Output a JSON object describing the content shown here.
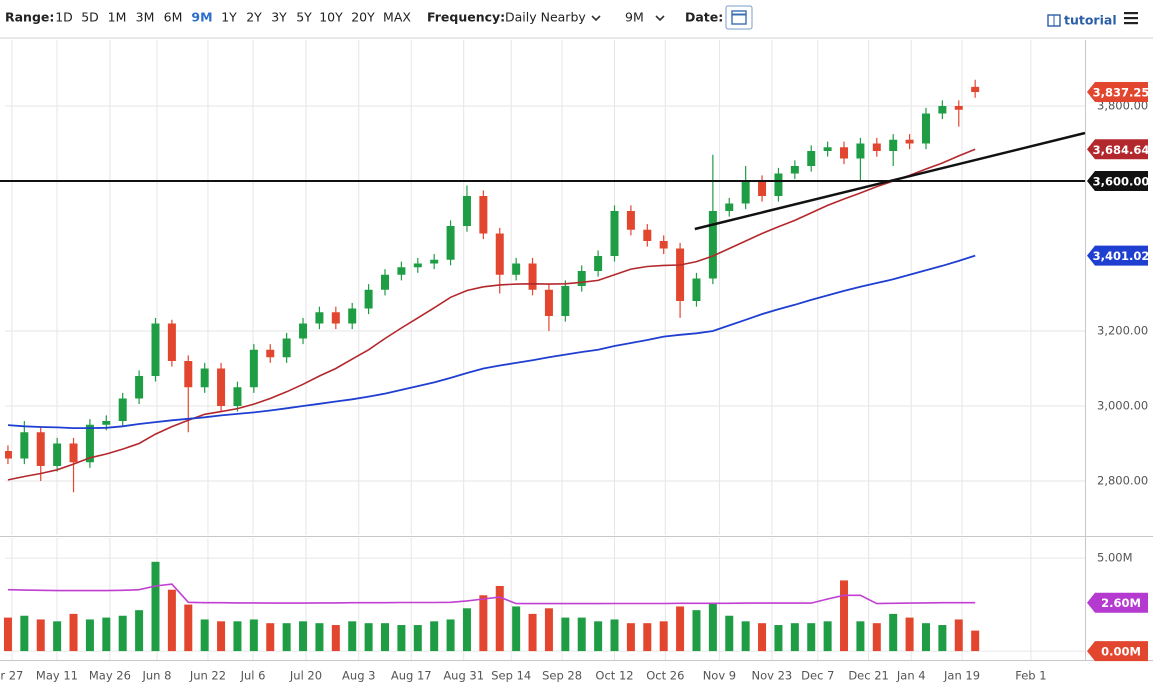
{
  "toolbar": {
    "range_label": "Range:",
    "ranges": [
      "1D",
      "5D",
      "1M",
      "3M",
      "6M",
      "9M",
      "1Y",
      "2Y",
      "3Y",
      "5Y",
      "10Y",
      "20Y",
      "MAX"
    ],
    "active_range": 5,
    "frequency_label": "Frequency:",
    "frequency": "Daily Nearby",
    "period": "9M",
    "date_label": "Date:",
    "tutorial": "tutorial"
  },
  "chart_data": {
    "type": "candlestick",
    "up_color": "#1f9d45",
    "down_color": "#e2462f",
    "xlim": [
      -0.18,
      65.7
    ],
    "ylim": [
      2656,
      3976
    ],
    "xticks": [
      {
        "value": 0.24,
        "label": "r 27"
      },
      {
        "value": 2.99,
        "label": "May 11"
      },
      {
        "value": 6.22,
        "label": "May 26"
      },
      {
        "value": 9.09,
        "label": "Jun 8"
      },
      {
        "value": 12.2,
        "label": "Jun 22"
      },
      {
        "value": 14.95,
        "label": "Jul 6"
      },
      {
        "value": 18.18,
        "label": "Jul 20"
      },
      {
        "value": 21.4,
        "label": "Aug 3"
      },
      {
        "value": 24.6,
        "label": "Aug 17"
      },
      {
        "value": 27.8,
        "label": "Aug 31"
      },
      {
        "value": 30.7,
        "label": "Sep 14"
      },
      {
        "value": 33.8,
        "label": "Sep 28"
      },
      {
        "value": 37.0,
        "label": "Oct 12"
      },
      {
        "value": 40.1,
        "label": "Oct 26"
      },
      {
        "value": 43.4,
        "label": "Nov 9"
      },
      {
        "value": 46.6,
        "label": "Nov 23"
      },
      {
        "value": 49.4,
        "label": "Dec 7"
      },
      {
        "value": 52.5,
        "label": "Dec 21"
      },
      {
        "value": 55.1,
        "label": "Jan 4"
      },
      {
        "value": 58.2,
        "label": "Jan 19"
      },
      {
        "value": 62.4,
        "label": "Feb 1"
      }
    ],
    "yticks": [
      {
        "value": 2800,
        "label": "2,800.00"
      },
      {
        "value": 3000,
        "label": "3,000.00"
      },
      {
        "value": 3200,
        "label": "3,200.00"
      },
      {
        "value": 3800,
        "label": "3,800.00"
      }
    ],
    "grid": true,
    "open": [
      2880,
      2860,
      2930,
      2840,
      2900,
      2850,
      2950,
      2960,
      3020,
      3080,
      3220,
      3120,
      3050,
      3100,
      3000,
      3050,
      3150,
      3130,
      3180,
      3220,
      3250,
      3220,
      3260,
      3310,
      3350,
      3370,
      3380,
      3390,
      3480,
      3560,
      3460,
      3350,
      3380,
      3310,
      3240,
      3320,
      3360,
      3400,
      3520,
      3470,
      3440,
      3420,
      3280,
      3340,
      3520,
      3540,
      3600,
      3560,
      3620,
      3640,
      3680,
      3690,
      3660,
      3700,
      3680,
      3710,
      3700,
      3780,
      3800,
      3851
    ],
    "high": [
      2895,
      2960,
      2945,
      2915,
      2915,
      2965,
      2975,
      3035,
      3095,
      3235,
      3230,
      3135,
      3115,
      3115,
      3065,
      3165,
      3165,
      3195,
      3235,
      3265,
      3265,
      3275,
      3325,
      3365,
      3385,
      3395,
      3405,
      3495,
      3588,
      3575,
      3475,
      3395,
      3395,
      3325,
      3335,
      3375,
      3415,
      3535,
      3535,
      3485,
      3455,
      3435,
      3355,
      3670,
      3555,
      3640,
      3615,
      3635,
      3655,
      3695,
      3705,
      3705,
      3715,
      3715,
      3725,
      3725,
      3795,
      3815,
      3815,
      3870
    ],
    "low": [
      2845,
      2845,
      2800,
      2825,
      2770,
      2835,
      2935,
      2945,
      3005,
      3065,
      3105,
      2930,
      3035,
      2985,
      2985,
      3035,
      3115,
      3115,
      3165,
      3205,
      3205,
      3205,
      3245,
      3295,
      3335,
      3355,
      3365,
      3375,
      3465,
      3445,
      3300,
      3335,
      3295,
      3200,
      3225,
      3305,
      3345,
      3385,
      3455,
      3425,
      3405,
      3235,
      3265,
      3325,
      3505,
      3525,
      3545,
      3545,
      3605,
      3625,
      3665,
      3645,
      3600,
      3665,
      3640,
      3685,
      3685,
      3765,
      3745,
      3822
    ],
    "close": [
      2860,
      2930,
      2840,
      2900,
      2850,
      2950,
      2960,
      3020,
      3080,
      3220,
      3120,
      3050,
      3100,
      3000,
      3050,
      3150,
      3130,
      3180,
      3220,
      3250,
      3220,
      3260,
      3310,
      3350,
      3370,
      3380,
      3390,
      3480,
      3560,
      3460,
      3350,
      3380,
      3310,
      3240,
      3320,
      3360,
      3400,
      3520,
      3470,
      3440,
      3420,
      3280,
      3340,
      3520,
      3540,
      3600,
      3560,
      3620,
      3640,
      3680,
      3690,
      3660,
      3700,
      3680,
      3710,
      3700,
      3780,
      3800,
      3790,
      3837.25
    ],
    "last_price": {
      "value": 3837.25,
      "label": "3,837.25",
      "color": "#e2462f"
    },
    "ma50": {
      "color": "#b3282d",
      "label": "3,684.64",
      "values": [
        2803,
        2812,
        2820,
        2830,
        2845,
        2862,
        2872,
        2885,
        2900,
        2925,
        2945,
        2962,
        2978,
        2985,
        2993,
        3005,
        3020,
        3038,
        3058,
        3080,
        3100,
        3125,
        3150,
        3180,
        3208,
        3235,
        3262,
        3290,
        3308,
        3318,
        3323,
        3325,
        3326,
        3325,
        3326,
        3330,
        3335,
        3350,
        3365,
        3372,
        3375,
        3376,
        3385,
        3400,
        3420,
        3440,
        3460,
        3478,
        3495,
        3515,
        3535,
        3552,
        3568,
        3585,
        3600,
        3615,
        3632,
        3648,
        3667,
        3684.64
      ]
    },
    "ma200": {
      "color": "#1f3fd1",
      "label": "3,401.02",
      "values": [
        2949,
        2946,
        2944,
        2943,
        2941,
        2941,
        2942,
        2946,
        2952,
        2957,
        2962,
        2966,
        2970,
        2975,
        2979,
        2983,
        2988,
        2994,
        3000,
        3006,
        3012,
        3018,
        3025,
        3033,
        3043,
        3053,
        3063,
        3075,
        3088,
        3100,
        3108,
        3115,
        3122,
        3130,
        3137,
        3144,
        3150,
        3160,
        3168,
        3176,
        3185,
        3190,
        3194,
        3200,
        3215,
        3230,
        3245,
        3258,
        3270,
        3283,
        3295,
        3307,
        3318,
        3328,
        3338,
        3350,
        3362,
        3374,
        3387,
        3401.02
      ]
    },
    "hline": {
      "value": 3600,
      "label": "3,600.00",
      "color": "#111111"
    },
    "trendline": {
      "x": [
        41.9,
        65.7
      ],
      "y": [
        3472,
        3728
      ],
      "color": "#111111"
    },
    "volume": {
      "ylim": [
        -0.48,
        6.08
      ],
      "yticks": [
        {
          "value": 5,
          "label": "5.00M"
        },
        {
          "value": 0,
          "label": "0.00M"
        }
      ],
      "values": [
        1.8,
        1.9,
        1.7,
        1.6,
        2.0,
        1.7,
        1.8,
        1.9,
        2.2,
        4.8,
        3.3,
        2.5,
        1.7,
        1.6,
        1.6,
        1.7,
        1.5,
        1.5,
        1.6,
        1.5,
        1.4,
        1.6,
        1.5,
        1.5,
        1.4,
        1.4,
        1.6,
        1.7,
        2.3,
        3.0,
        3.5,
        2.4,
        2.0,
        2.3,
        1.8,
        1.8,
        1.6,
        1.7,
        1.5,
        1.5,
        1.6,
        2.4,
        2.2,
        2.6,
        1.9,
        1.6,
        1.5,
        1.4,
        1.5,
        1.5,
        1.6,
        3.8,
        1.6,
        1.5,
        2.0,
        1.8,
        1.5,
        1.4,
        1.7,
        1.1
      ],
      "ma": {
        "color": "#c13fd3",
        "label": "2.60M",
        "label_color": "#b43ad0",
        "values": [
          3.3,
          3.28,
          3.27,
          3.25,
          3.25,
          3.25,
          3.25,
          3.27,
          3.3,
          3.5,
          3.6,
          2.62,
          2.6,
          2.6,
          2.59,
          2.59,
          2.58,
          2.58,
          2.58,
          2.59,
          2.59,
          2.6,
          2.6,
          2.6,
          2.61,
          2.61,
          2.61,
          2.62,
          2.7,
          2.8,
          2.9,
          2.55,
          2.55,
          2.55,
          2.55,
          2.55,
          2.55,
          2.56,
          2.56,
          2.56,
          2.56,
          2.57,
          2.57,
          2.57,
          2.57,
          2.58,
          2.58,
          2.58,
          2.58,
          2.58,
          2.8,
          3.0,
          3.0,
          2.55,
          2.57,
          2.58,
          2.59,
          2.6,
          2.6,
          2.6
        ]
      }
    }
  }
}
